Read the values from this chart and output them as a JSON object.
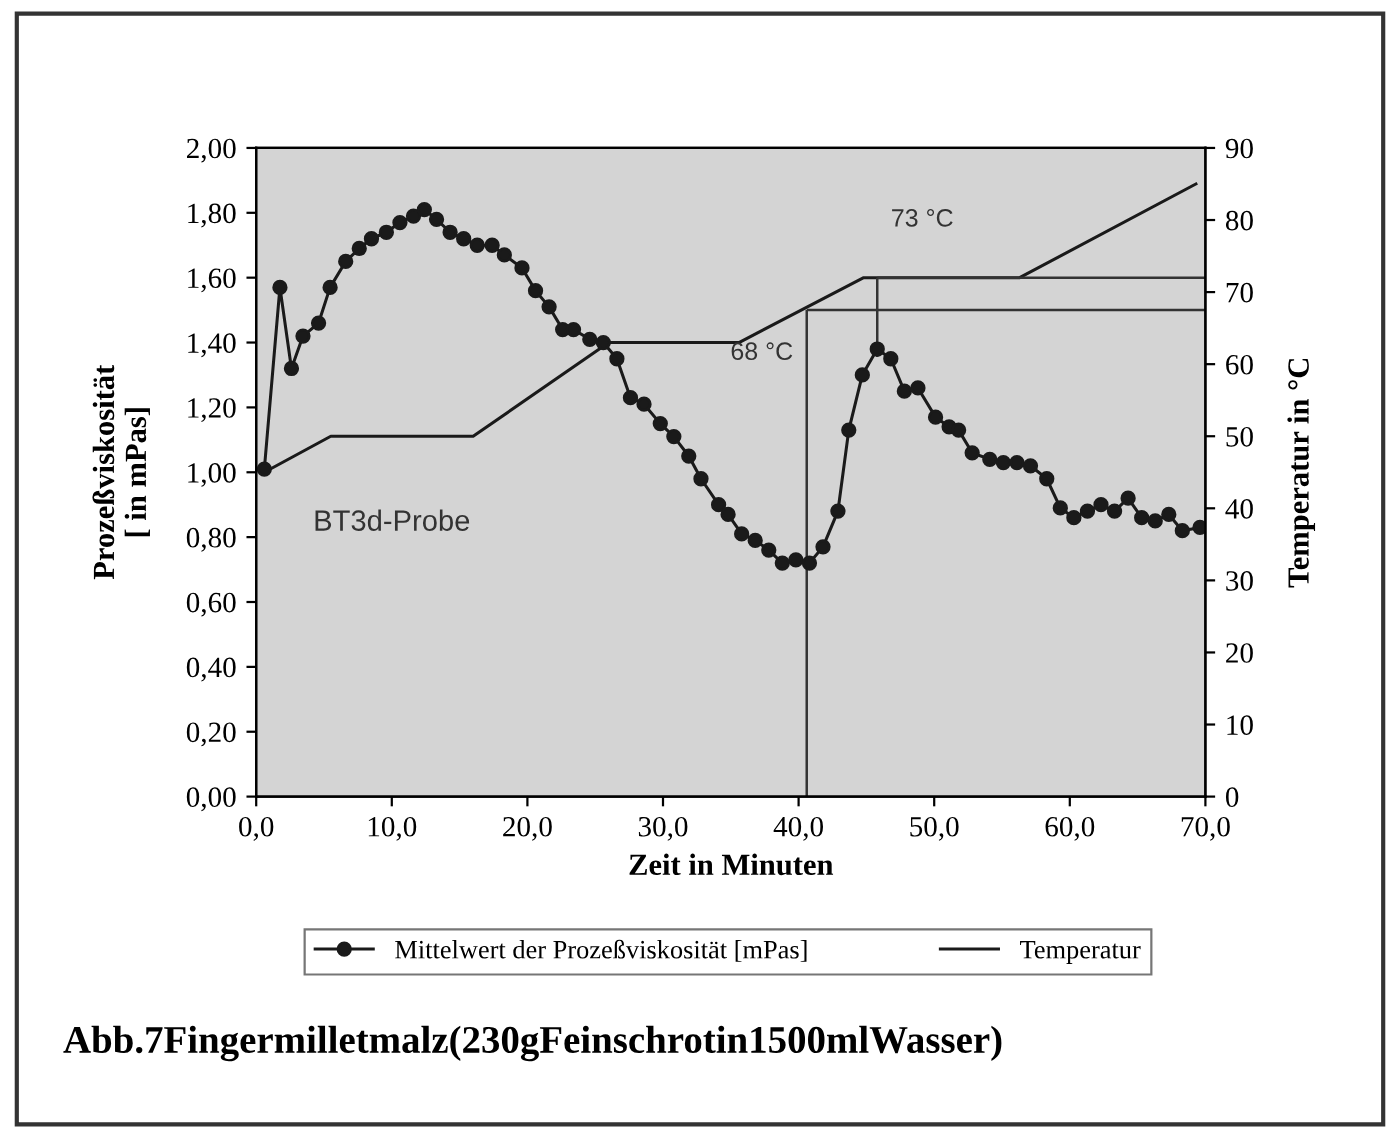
{
  "chart_data": {
    "type": "line",
    "xlabel": "Zeit in Minuten",
    "ylabel": "Prozeßviskosität\n[ in mPas]",
    "y2label": "Temperatur in °C",
    "series": [
      {
        "name": "Mittelwert der Prozeßviskosität [mPas]",
        "color": "#1a1a1a",
        "marker": "circle",
        "x": [
          0.6,
          1.75,
          2.6,
          3.45,
          4.6,
          5.45,
          6.6,
          7.6,
          8.5,
          9.6,
          10.6,
          11.6,
          12.4,
          13.3,
          14.3,
          15.3,
          16.3,
          17.4,
          18.3,
          19.6,
          20.6,
          21.6,
          22.6,
          23.4,
          24.6,
          25.6,
          26.6,
          27.6,
          28.6,
          29.8,
          30.8,
          31.9,
          32.8,
          34.1,
          34.8,
          35.8,
          36.8,
          37.8,
          38.8,
          39.8,
          40.8,
          41.8,
          42.9,
          43.7,
          44.7,
          45.8,
          46.8,
          47.8,
          48.8,
          50.1,
          51.1,
          51.8,
          52.8,
          54.1,
          55.1,
          56.1,
          57.1,
          58.3,
          59.3,
          60.3,
          61.3,
          62.3,
          63.3,
          64.3,
          65.3,
          66.3,
          67.3,
          68.3,
          69.6
        ],
        "values": [
          1.01,
          1.57,
          1.32,
          1.42,
          1.46,
          1.57,
          1.65,
          1.69,
          1.72,
          1.74,
          1.77,
          1.79,
          1.81,
          1.78,
          1.74,
          1.72,
          1.7,
          1.7,
          1.67,
          1.63,
          1.56,
          1.51,
          1.44,
          1.44,
          1.41,
          1.4,
          1.35,
          1.23,
          1.21,
          1.15,
          1.11,
          1.05,
          0.98,
          0.9,
          0.87,
          0.81,
          0.79,
          0.76,
          0.72,
          0.73,
          0.72,
          0.77,
          0.88,
          1.13,
          1.3,
          1.38,
          1.35,
          1.25,
          1.26,
          1.17,
          1.14,
          1.13,
          1.06,
          1.04,
          1.03,
          1.03,
          1.02,
          0.98,
          0.89,
          0.86,
          0.88,
          0.9,
          0.88,
          0.92,
          0.86,
          0.85,
          0.87,
          0.82,
          0.83
        ]
      },
      {
        "name": "Temperatur",
        "color": "#1a1a1a",
        "axis": "y2",
        "marker": "none",
        "x": [
          0.6,
          5.5,
          16,
          26,
          35.6,
          44.8,
          56.3,
          69.3
        ],
        "values": [
          45,
          50,
          50,
          63,
          63,
          72,
          72,
          85
        ]
      }
    ],
    "xlim": [
      0,
      70
    ],
    "xticks": [
      {
        "value": 0,
        "label": "0,0"
      },
      {
        "value": 10,
        "label": "10,0"
      },
      {
        "value": 20,
        "label": "20,0"
      },
      {
        "value": 30,
        "label": "30,0"
      },
      {
        "value": 40,
        "label": "40,0"
      },
      {
        "value": 50,
        "label": "50,0"
      },
      {
        "value": 60,
        "label": "60,0"
      },
      {
        "value": 70,
        "label": "70,0"
      }
    ],
    "ylim": [
      0,
      2
    ],
    "yticks": [
      {
        "value": 0,
        "label": "0,00"
      },
      {
        "value": 0.2,
        "label": "0,20"
      },
      {
        "value": 0.4,
        "label": "0,40"
      },
      {
        "value": 0.6,
        "label": "0,60"
      },
      {
        "value": 0.8,
        "label": "0,80"
      },
      {
        "value": 1.0,
        "label": "1,00"
      },
      {
        "value": 1.2,
        "label": "1,20"
      },
      {
        "value": 1.4,
        "label": "1,40"
      },
      {
        "value": 1.6,
        "label": "1,60"
      },
      {
        "value": 1.8,
        "label": "1,80"
      },
      {
        "value": 2.0,
        "label": "2,00"
      }
    ],
    "y2lim": [
      0,
      90
    ],
    "y2ticks": [
      0,
      10,
      20,
      30,
      40,
      50,
      60,
      70,
      80,
      90
    ],
    "ref_lines": [
      {
        "axis": "x",
        "value": 40.6,
        "color": "#333333"
      },
      {
        "axis": "x",
        "value": 45.8,
        "color": "#333333"
      },
      {
        "axis": "y2",
        "value": 67.5,
        "label": "68 °C",
        "color": "#333333"
      },
      {
        "axis": "y2",
        "value": 72,
        "label": "73 °C",
        "color": "#333333"
      }
    ],
    "annotations": [
      "BT3d-Probe",
      "Abb.7Fingermilletmalz(230gFeinschrotin1500mlWasser)"
    ],
    "grid": false,
    "legend": "bottom",
    "line_style": "solid"
  }
}
